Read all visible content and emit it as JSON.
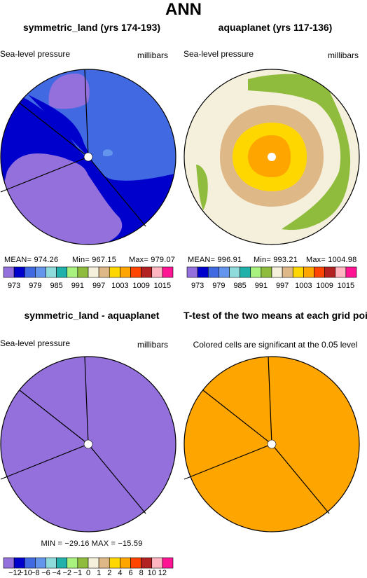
{
  "header": {
    "title": "ANN"
  },
  "colors": {
    "c973": "#9370db",
    "c976": "#0000cd",
    "c979": "#4169e1",
    "c982": "#6495ed",
    "c985": "#8fdbdb",
    "c988": "#20b2aa",
    "c991": "#aaf27f",
    "c994": "#8fbc3c",
    "c997": "#f5f0dc",
    "c1000": "#deb887",
    "c1003": "#ffd700",
    "c1006": "#ffa500",
    "c1009": "#ff4500",
    "c1012": "#b22222",
    "c1015": "#ffb6c1",
    "c1018": "#ff1493",
    "outline": "#000000"
  },
  "panels": {
    "p1": {
      "title": "symmetric_land (yrs 174-193)",
      "left_label": "Sea-level pressure",
      "right_label": "millibars",
      "mean_label": "MEAN= 974.26",
      "min_label": "Min= 967.15",
      "max_label": "Max= 979.07"
    },
    "p2": {
      "title": "aquaplanet (yrs 117-136)",
      "left_label": "Sea-level pressure",
      "right_label": "millibars",
      "mean_label": "MEAN= 996.91",
      "min_label": "Min= 993.21",
      "max_label": "Max= 1004.98"
    },
    "p3": {
      "title": "symmetric_land - aquaplanet",
      "left_label": "Sea-level pressure",
      "right_label": "millibars",
      "minmax_label": "MIN = −29.16  MAX = −15.59"
    },
    "p4": {
      "title": "T-test of the two means at each grid point",
      "note": "Colored cells are significant at the 0.05 level"
    }
  },
  "chart_data": [
    {
      "type": "heatmap",
      "projection": "polar",
      "title": "symmetric_land (yrs 174-193)",
      "variable": "Sea-level pressure",
      "units": "millibars",
      "mean": 974.26,
      "min": 967.15,
      "max": 979.07,
      "colorbar_ticks": [
        "973",
        "979",
        "985",
        "991",
        "997",
        "1003",
        "1009",
        "1015"
      ],
      "colorbar_colors": [
        "#9370db",
        "#0000cd",
        "#4169e1",
        "#6495ed",
        "#8fdbdb",
        "#20b2aa",
        "#aaf27f",
        "#8fbc3c",
        "#f5f0dc",
        "#deb887",
        "#ffd700",
        "#ffa500",
        "#ff4500",
        "#b22222",
        "#ffb6c1",
        "#ff1493"
      ]
    },
    {
      "type": "heatmap",
      "projection": "polar",
      "title": "aquaplanet (yrs 117-136)",
      "variable": "Sea-level pressure",
      "units": "millibars",
      "mean": 996.91,
      "min": 993.21,
      "max": 1004.98,
      "colorbar_ticks": [
        "973",
        "979",
        "985",
        "991",
        "997",
        "1003",
        "1009",
        "1015"
      ],
      "colorbar_colors": [
        "#9370db",
        "#0000cd",
        "#4169e1",
        "#6495ed",
        "#8fdbdb",
        "#20b2aa",
        "#aaf27f",
        "#8fbc3c",
        "#f5f0dc",
        "#deb887",
        "#ffd700",
        "#ffa500",
        "#ff4500",
        "#b22222",
        "#ffb6c1",
        "#ff1493"
      ]
    },
    {
      "type": "heatmap",
      "projection": "polar",
      "title": "symmetric_land - aquaplanet",
      "variable": "Sea-level pressure",
      "units": "millibars",
      "min": -29.16,
      "max": -15.59,
      "colorbar_ticks": [
        "−12",
        "−10",
        "−8",
        "−6",
        "−4",
        "−2",
        "−1",
        "0",
        "1",
        "2",
        "4",
        "6",
        "8",
        "10",
        "12"
      ],
      "colorbar_colors": [
        "#9370db",
        "#0000cd",
        "#4169e1",
        "#6495ed",
        "#8fdbdb",
        "#20b2aa",
        "#aaf27f",
        "#8fbc3c",
        "#f5f0dc",
        "#deb887",
        "#ffd700",
        "#ffa500",
        "#ff4500",
        "#b22222",
        "#ffb6c1",
        "#ff1493"
      ]
    },
    {
      "type": "heatmap",
      "projection": "polar",
      "title": "T-test of the two means at each grid point",
      "note": "Colored cells are significant at the 0.05 level"
    }
  ]
}
